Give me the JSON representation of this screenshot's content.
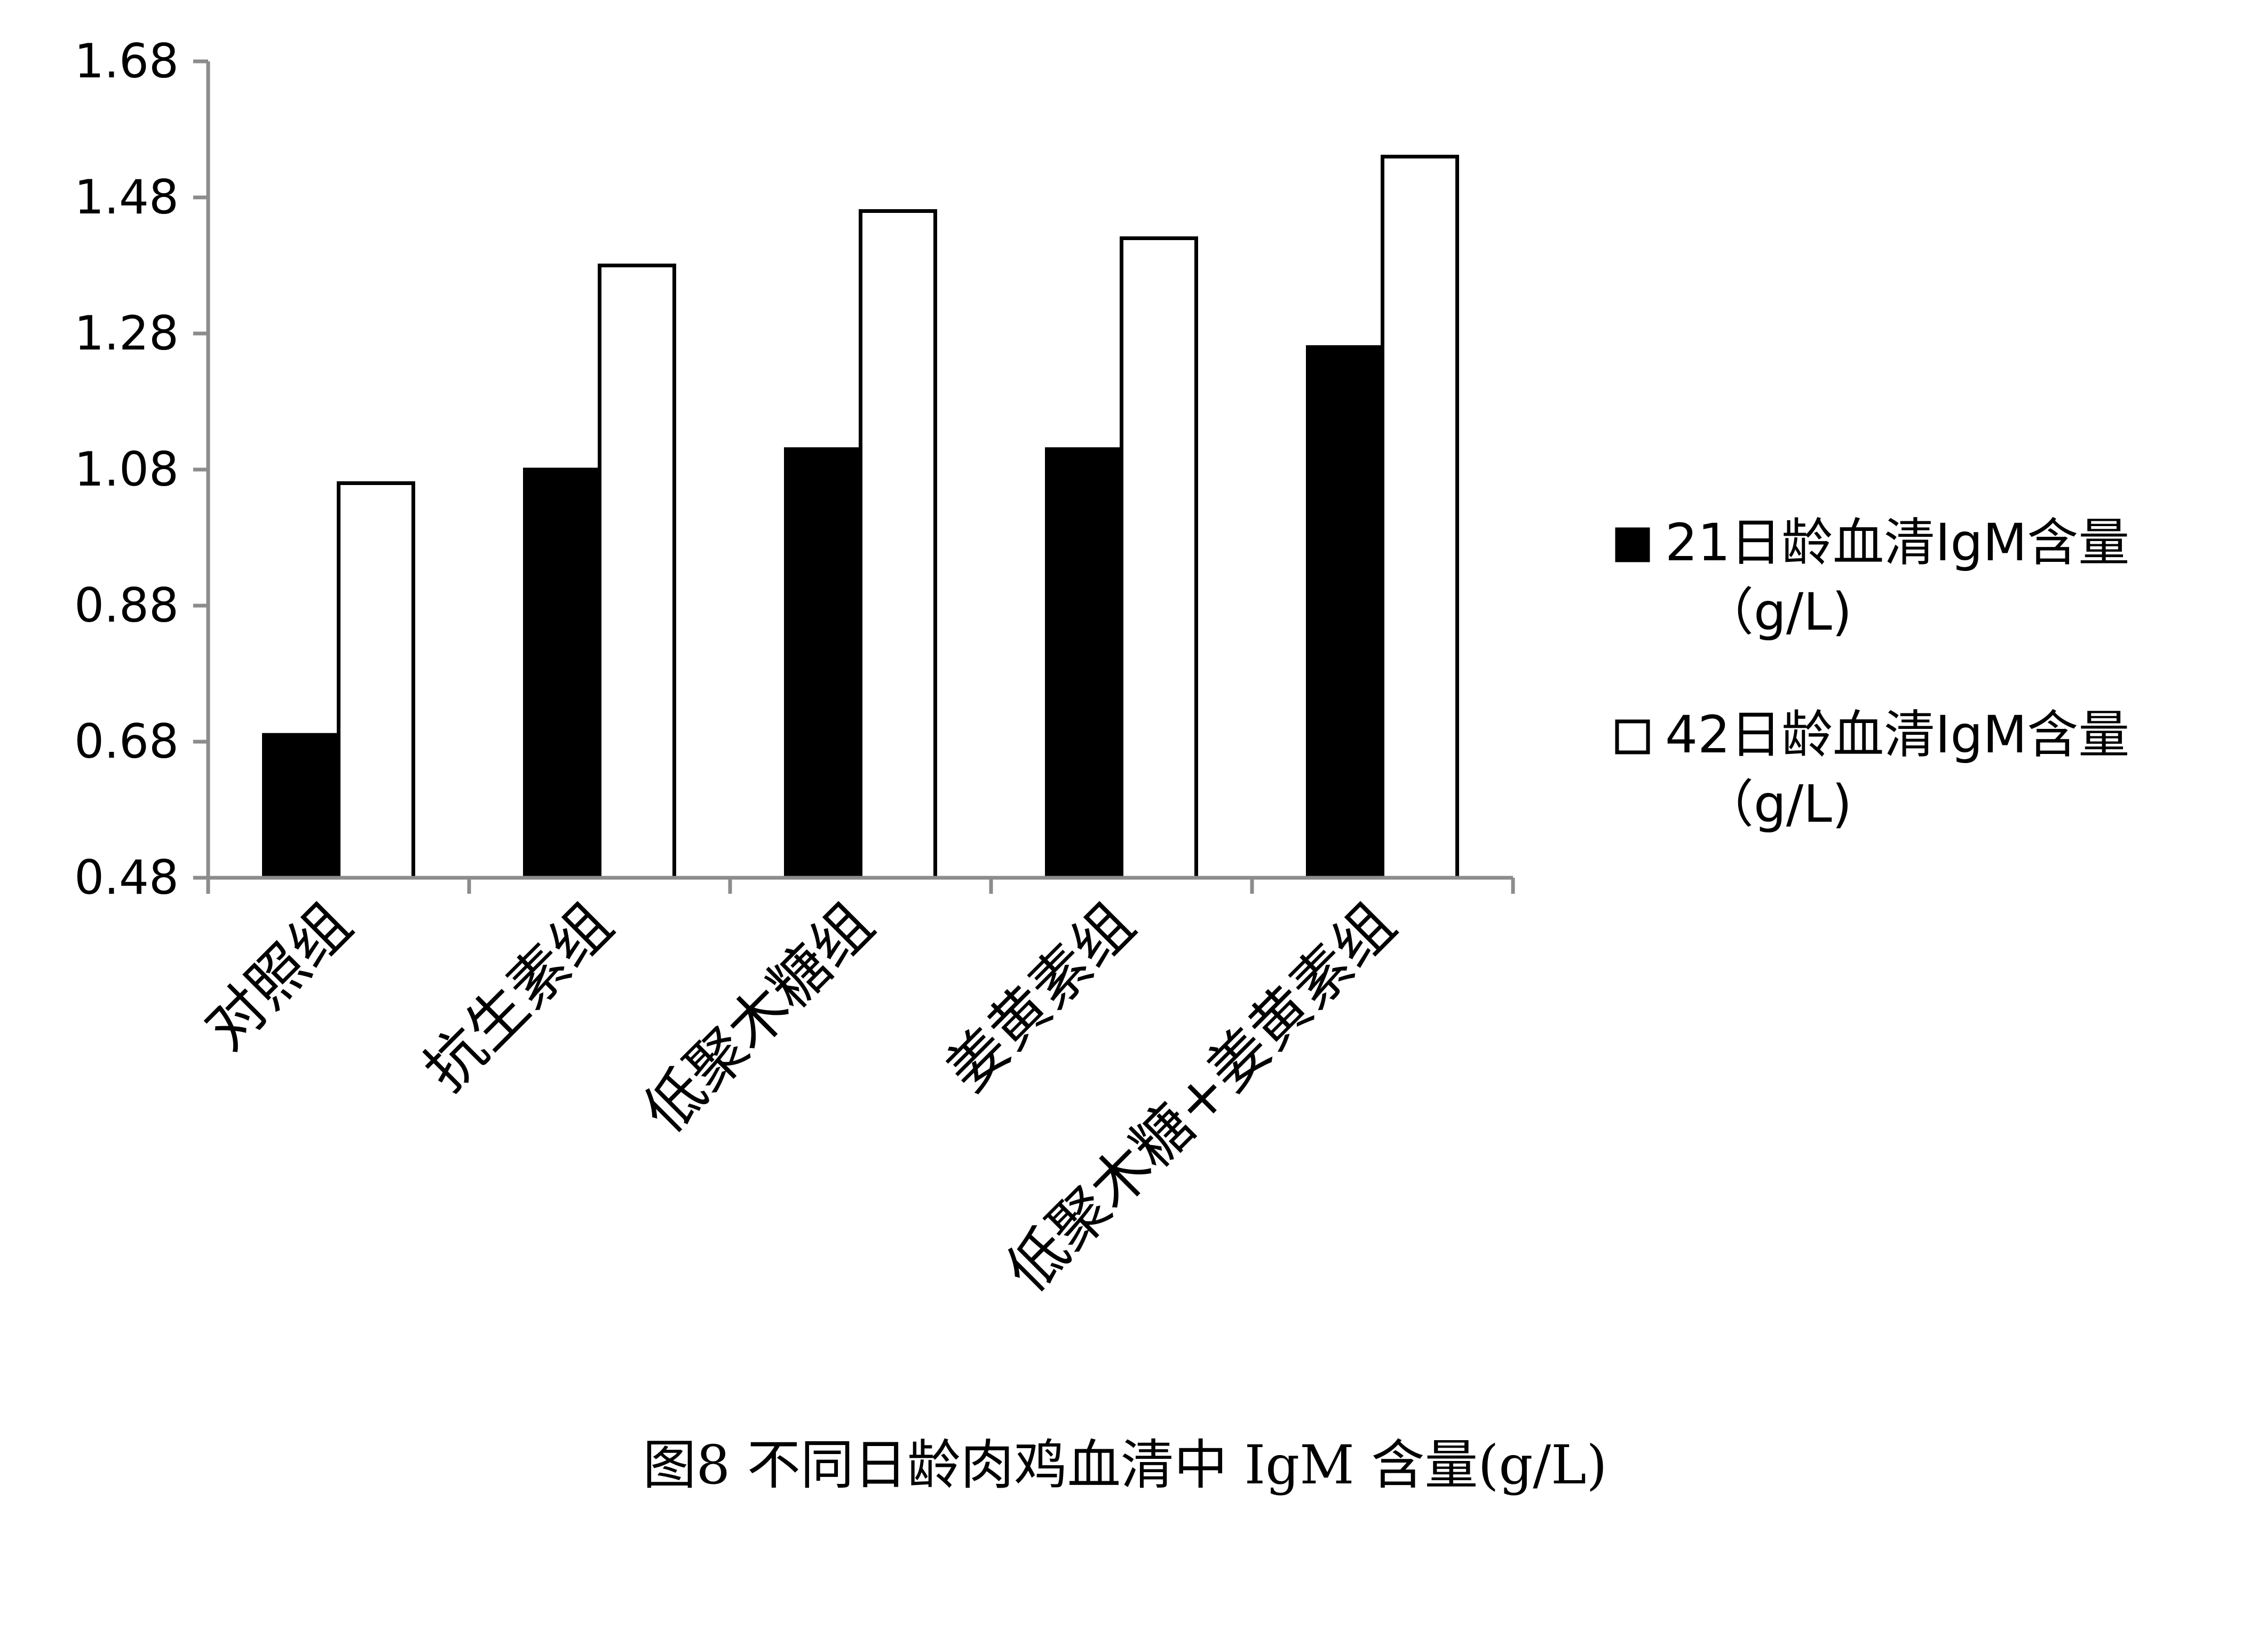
{
  "chart_data": {
    "type": "bar",
    "categories": [
      "对照组",
      "抗生素组",
      "低聚木糖组",
      "姜黄素组",
      "低聚木糖+姜黄素组"
    ],
    "series": [
      {
        "name": "21日龄血清IgM含量（g/L)",
        "values": [
          0.69,
          1.08,
          1.11,
          1.11,
          1.26
        ],
        "color": "#000000"
      },
      {
        "name": "42日龄血清IgM含量（g/L)",
        "values": [
          1.06,
          1.38,
          1.46,
          1.42,
          1.54
        ],
        "color": "#ffffff"
      }
    ],
    "ylim": [
      0.48,
      1.68
    ],
    "yticks": [
      "0.48",
      "0.68",
      "0.88",
      "1.08",
      "1.28",
      "1.48",
      "1.68"
    ],
    "legend": {
      "position": "right",
      "entries": [
        {
          "line1": "21日龄血清IgM含量",
          "line2": "（g/L)"
        },
        {
          "line1": "42日龄血清IgM含量",
          "line2": "（g/L)"
        }
      ]
    },
    "caption": "图8 不同日龄肉鸡血清中 IgM 含量(g/L)"
  }
}
